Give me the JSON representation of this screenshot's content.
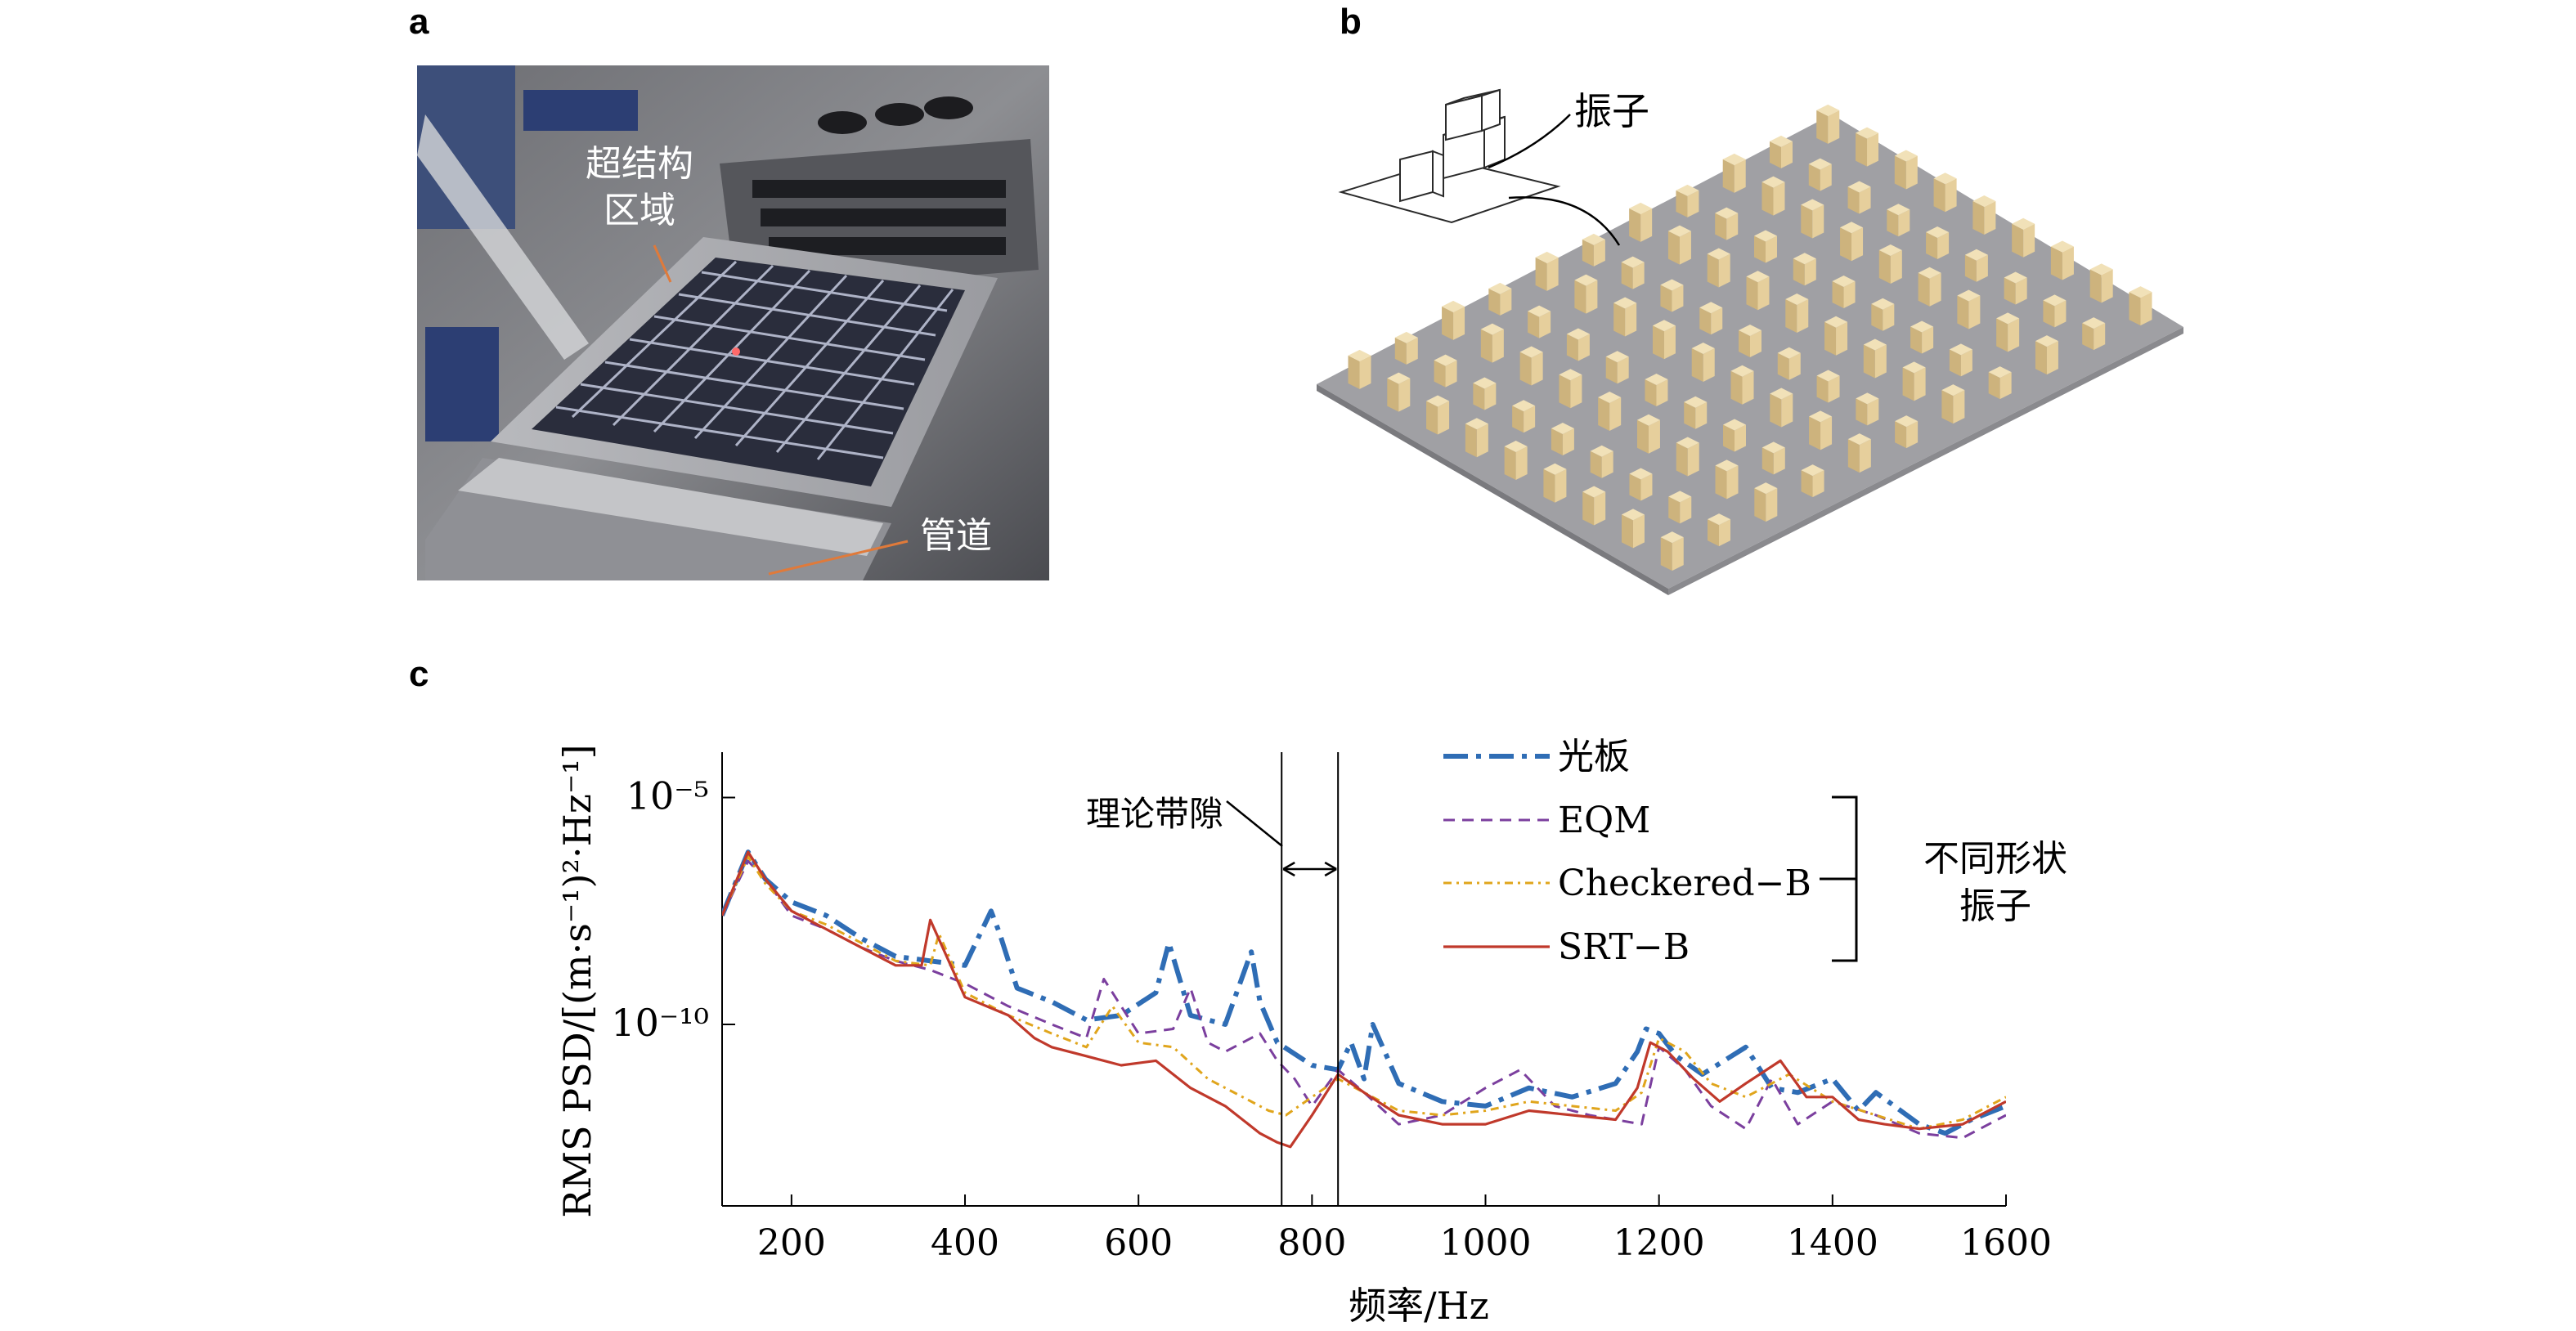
{
  "panels": {
    "a": {
      "label": "a",
      "annotation_region": "超结构\n区域",
      "annotation_region_line1": "超结构",
      "annotation_region_line2": "区域",
      "annotation_pipe": "管道"
    },
    "b": {
      "label": "b",
      "annotation_oscillator": "振子"
    },
    "c": {
      "label": "c",
      "bandgap_label": "理论带隙",
      "bracket_label_line1": "不同形状",
      "bracket_label_line2": "振子"
    }
  },
  "colors": {
    "guangban": "#2f6db5",
    "eqm": "#7b3f9e",
    "checkered": "#e0a51c",
    "srt": "#c0392b",
    "block": "#e6cf9c",
    "plate": "#a0a0a4"
  },
  "chart_data": {
    "type": "line",
    "xlabel": "频率/Hz",
    "ylabel": "RMS PSD/[(m·s⁻¹)²·Hz⁻¹]",
    "xlim": [
      120,
      1600
    ],
    "x_ticks": [
      200,
      400,
      600,
      800,
      1000,
      1200,
      1400,
      1600
    ],
    "y_scale": "log",
    "y_ticks": [
      "10⁻⁵",
      "10⁻¹⁰"
    ],
    "ylim_log10": [
      -14,
      -4
    ],
    "bandgap_hz": [
      765,
      830
    ],
    "legend_placement": "top-right",
    "series": [
      {
        "name": "光板",
        "style": "dash-dot-thick",
        "x": [
          120,
          150,
          170,
          200,
          240,
          280,
          320,
          360,
          400,
          430,
          440,
          460,
          500,
          540,
          580,
          620,
          635,
          660,
          700,
          730,
          740,
          760,
          800,
          830,
          845,
          860,
          870,
          900,
          950,
          1000,
          1050,
          1100,
          1150,
          1175,
          1185,
          1200,
          1220,
          1250,
          1300,
          1330,
          1360,
          1400,
          1430,
          1450,
          1500,
          1530,
          1560,
          1600
        ],
        "y": [
          -7.6,
          -6.2,
          -6.8,
          -7.3,
          -7.6,
          -8.1,
          -8.5,
          -8.6,
          -8.7,
          -7.5,
          -8.0,
          -9.2,
          -9.5,
          -9.9,
          -9.8,
          -9.3,
          -8.2,
          -9.8,
          -10.0,
          -8.4,
          -9.5,
          -10.4,
          -10.9,
          -11.0,
          -10.4,
          -11.2,
          -10.0,
          -11.3,
          -11.7,
          -11.8,
          -11.4,
          -11.6,
          -11.3,
          -10.6,
          -10.1,
          -10.2,
          -10.7,
          -11.1,
          -10.5,
          -11.4,
          -11.5,
          -11.2,
          -11.9,
          -11.5,
          -12.2,
          -12.4,
          -12.1,
          -11.8
        ]
      },
      {
        "name": "EQM",
        "style": "dashed",
        "x": [
          120,
          150,
          170,
          200,
          240,
          280,
          320,
          360,
          400,
          450,
          500,
          540,
          560,
          600,
          640,
          660,
          680,
          700,
          740,
          760,
          780,
          800,
          830,
          860,
          900,
          950,
          1000,
          1040,
          1080,
          1120,
          1150,
          1180,
          1200,
          1230,
          1260,
          1300,
          1330,
          1360,
          1400,
          1450,
          1500,
          1550,
          1600
        ],
        "y": [
          -7.6,
          -6.4,
          -6.8,
          -7.6,
          -7.9,
          -8.3,
          -8.6,
          -8.8,
          -9.1,
          -9.6,
          -10.0,
          -10.3,
          -9.0,
          -10.2,
          -10.1,
          -9.2,
          -10.4,
          -10.6,
          -10.2,
          -10.8,
          -11.2,
          -11.8,
          -11.0,
          -11.5,
          -12.2,
          -12.0,
          -11.4,
          -11.0,
          -11.8,
          -12.0,
          -12.1,
          -12.2,
          -10.5,
          -11.0,
          -11.8,
          -12.3,
          -11.2,
          -12.2,
          -11.7,
          -12.0,
          -12.4,
          -12.5,
          -12.0
        ]
      },
      {
        "name": "Checkered−B",
        "style": "dash-dot",
        "x": [
          120,
          150,
          170,
          200,
          240,
          280,
          320,
          360,
          370,
          400,
          450,
          500,
          540,
          570,
          600,
          640,
          680,
          720,
          750,
          770,
          800,
          830,
          860,
          900,
          950,
          1000,
          1050,
          1100,
          1150,
          1180,
          1200,
          1230,
          1260,
          1300,
          1350,
          1400,
          1450,
          1500,
          1550,
          1600
        ],
        "y": [
          -7.6,
          -6.3,
          -6.9,
          -7.5,
          -7.8,
          -8.2,
          -8.6,
          -8.7,
          -8.0,
          -9.3,
          -9.8,
          -10.2,
          -10.5,
          -9.6,
          -10.4,
          -10.5,
          -11.2,
          -11.6,
          -11.9,
          -12.0,
          -11.6,
          -11.2,
          -11.5,
          -11.9,
          -12.0,
          -11.9,
          -11.7,
          -11.8,
          -11.9,
          -11.5,
          -10.3,
          -10.6,
          -11.3,
          -11.6,
          -11.1,
          -11.7,
          -12.0,
          -12.3,
          -12.1,
          -11.6
        ]
      },
      {
        "name": "SRT−B",
        "style": "solid",
        "x": [
          120,
          150,
          170,
          200,
          240,
          280,
          320,
          350,
          360,
          400,
          450,
          480,
          500,
          540,
          580,
          620,
          660,
          700,
          740,
          760,
          775,
          800,
          830,
          860,
          900,
          950,
          1000,
          1050,
          1100,
          1150,
          1175,
          1190,
          1210,
          1240,
          1270,
          1300,
          1340,
          1370,
          1400,
          1430,
          1460,
          1500,
          1550,
          1600
        ],
        "y": [
          -7.6,
          -6.2,
          -6.8,
          -7.5,
          -7.9,
          -8.3,
          -8.7,
          -8.7,
          -7.7,
          -9.4,
          -9.8,
          -10.3,
          -10.5,
          -10.7,
          -10.9,
          -10.8,
          -11.4,
          -11.8,
          -12.4,
          -12.6,
          -12.7,
          -12.0,
          -11.1,
          -11.5,
          -12.0,
          -12.2,
          -12.2,
          -11.9,
          -12.0,
          -12.1,
          -11.4,
          -10.4,
          -10.6,
          -11.2,
          -11.7,
          -11.3,
          -10.8,
          -11.6,
          -11.6,
          -12.1,
          -12.2,
          -12.3,
          -12.2,
          -11.7
        ]
      }
    ]
  }
}
